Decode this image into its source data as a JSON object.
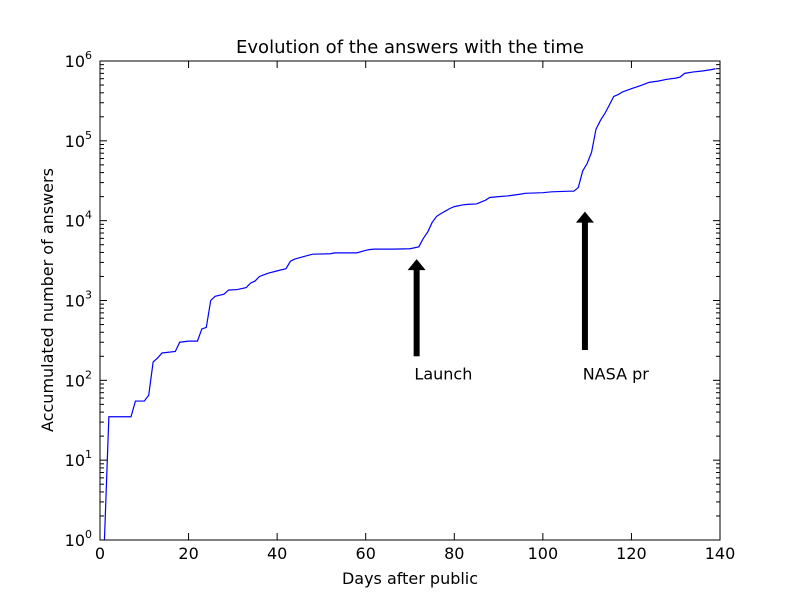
{
  "chart_data": {
    "type": "line",
    "title": "Evolution of the answers with the time",
    "xlabel": "Days after public",
    "ylabel": "Accumulated number of answers",
    "xlim": [
      0,
      140
    ],
    "ylim": [
      1,
      1000000
    ],
    "yscale": "log",
    "grid": false,
    "x_ticks": [
      0,
      20,
      40,
      60,
      80,
      100,
      120,
      140
    ],
    "x_tick_labels": [
      "0",
      "20",
      "40",
      "60",
      "80",
      "100",
      "120",
      "140"
    ],
    "y_ticks": [
      1,
      10,
      100,
      1000,
      10000,
      100000,
      1000000
    ],
    "y_tick_labels": [
      {
        "base": "10",
        "exp": "0"
      },
      {
        "base": "10",
        "exp": "1"
      },
      {
        "base": "10",
        "exp": "2"
      },
      {
        "base": "10",
        "exp": "3"
      },
      {
        "base": "10",
        "exp": "4"
      },
      {
        "base": "10",
        "exp": "5"
      },
      {
        "base": "10",
        "exp": "6"
      }
    ],
    "series": [
      {
        "color": "#0000ff",
        "x": [
          1,
          2,
          7,
          8,
          10,
          11,
          12,
          13,
          14,
          17,
          18,
          20,
          22,
          23,
          24,
          25,
          26,
          28,
          29,
          31,
          33,
          34,
          35,
          36,
          37,
          38,
          40,
          42,
          43,
          44,
          46,
          48,
          52,
          53,
          58,
          60,
          61,
          62,
          66,
          70,
          72,
          73,
          74,
          75,
          76,
          77,
          78,
          79,
          80,
          82,
          83,
          85,
          87,
          88,
          90,
          92,
          95,
          96,
          100,
          102,
          106,
          107,
          108,
          109,
          110,
          111,
          112,
          113,
          114,
          115,
          116,
          117,
          118,
          120,
          122,
          124,
          126,
          128,
          130,
          131,
          132,
          134,
          136,
          138,
          139
        ],
        "y": [
          1,
          35,
          35,
          55,
          55,
          65,
          170,
          190,
          220,
          230,
          300,
          310,
          310,
          440,
          460,
          1000,
          1130,
          1200,
          1350,
          1370,
          1450,
          1650,
          1750,
          2000,
          2100,
          2200,
          2350,
          2500,
          3100,
          3300,
          3550,
          3800,
          3850,
          3950,
          3950,
          4250,
          4350,
          4400,
          4400,
          4450,
          4700,
          6000,
          7200,
          9500,
          11300,
          12300,
          13200,
          14200,
          15000,
          15800,
          16000,
          16200,
          18000,
          19500,
          20000,
          20400,
          21500,
          22000,
          22400,
          23000,
          23400,
          23400,
          26000,
          42000,
          52000,
          72000,
          140000,
          180000,
          220000,
          280000,
          360000,
          380000,
          410000,
          450000,
          490000,
          540000,
          560000,
          590000,
          610000,
          630000,
          700000,
          730000,
          750000,
          780000,
          800000
        ]
      }
    ],
    "annotations": [
      {
        "text": "Launch",
        "x_text": 71,
        "y_text": 100,
        "x_arrow": 71.5,
        "y_tail": 200,
        "y_head": 3300
      },
      {
        "text": "NASA pr",
        "x_text": 109,
        "y_text": 100,
        "x_arrow": 109.5,
        "y_tail": 240,
        "y_head": 13000
      }
    ]
  }
}
